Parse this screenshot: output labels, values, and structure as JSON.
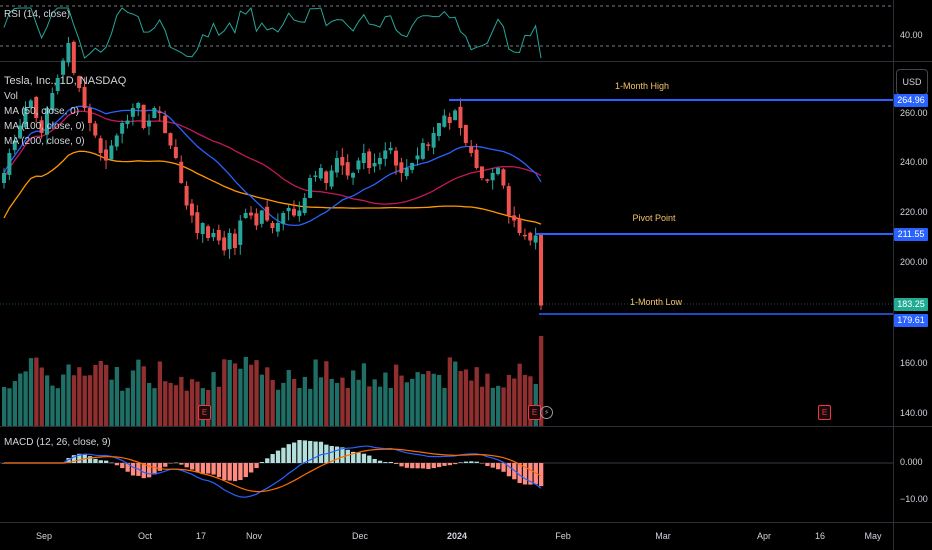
{
  "rsi": {
    "label": "RSI (14, close)",
    "tick": "40.00"
  },
  "legend": {
    "symbol": "Tesla, Inc., 1D, NASDAQ",
    "vol": "Vol",
    "ma50": "MA (50, close, 0)",
    "ma100": "MA (100, close, 0)",
    "ma200": "MA (200, close, 0)"
  },
  "currency_button": "USD",
  "price_axis": {
    "ticks": [
      "260.00",
      "240.00",
      "220.00",
      "200.00",
      "160.00",
      "140.00"
    ],
    "tags": {
      "month_high": "264.96",
      "pivot": "211.55",
      "last": "183.25",
      "month_low": "179.61"
    }
  },
  "lines": {
    "month_high_label": "1-Month High",
    "pivot_label": "Pivot Point",
    "month_low_label": "1-Month Low"
  },
  "earnings_marker": "E",
  "macd": {
    "label": "MACD (12, 26, close, 9)",
    "ticks": [
      "0.000",
      "−10.00"
    ]
  },
  "x_axis": [
    "Sep",
    "Oct",
    "17",
    "Nov",
    "Dec",
    "2024",
    "Feb",
    "Mar",
    "Apr",
    "16",
    "May"
  ],
  "colors": {
    "up": "#26a69a",
    "down": "#ef5350",
    "ma50": "#2962ff",
    "ma100": "#c2185b",
    "ma200": "#ff9800",
    "level_line": "#2962ff",
    "label_text": "#f5c56b",
    "last_price": "#22ab94"
  },
  "chart_data": {
    "type": "candlestick",
    "symbol": "Tesla, Inc., 1D, NASDAQ",
    "levels": [
      {
        "name": "1-Month High",
        "value": 264.96
      },
      {
        "name": "Pivot Point",
        "value": 211.55
      },
      {
        "name": "1-Month Low",
        "value": 179.61
      }
    ],
    "last_price": 183.25,
    "candles_close": [
      236,
      244,
      249,
      255,
      262,
      265,
      258,
      252,
      262,
      268,
      274,
      281,
      288,
      276,
      270,
      262,
      256,
      251,
      244,
      241,
      247,
      251,
      256,
      257,
      262,
      264,
      254,
      257,
      262,
      260,
      252,
      247,
      242,
      232,
      223,
      219,
      212,
      216,
      210,
      212,
      209,
      205,
      212,
      206,
      217,
      220,
      219,
      215,
      221,
      217,
      214,
      216,
      220,
      222,
      219,
      221,
      226,
      234,
      235,
      238,
      232,
      237,
      242,
      239,
      235,
      236,
      241,
      244,
      238,
      240,
      242,
      245,
      246,
      239,
      236,
      238,
      240,
      243,
      248,
      247,
      252,
      256,
      259,
      256,
      261,
      254,
      248,
      244,
      238,
      234,
      233,
      236,
      238,
      231,
      219,
      217,
      212,
      211,
      209,
      211,
      183
    ]
  }
}
